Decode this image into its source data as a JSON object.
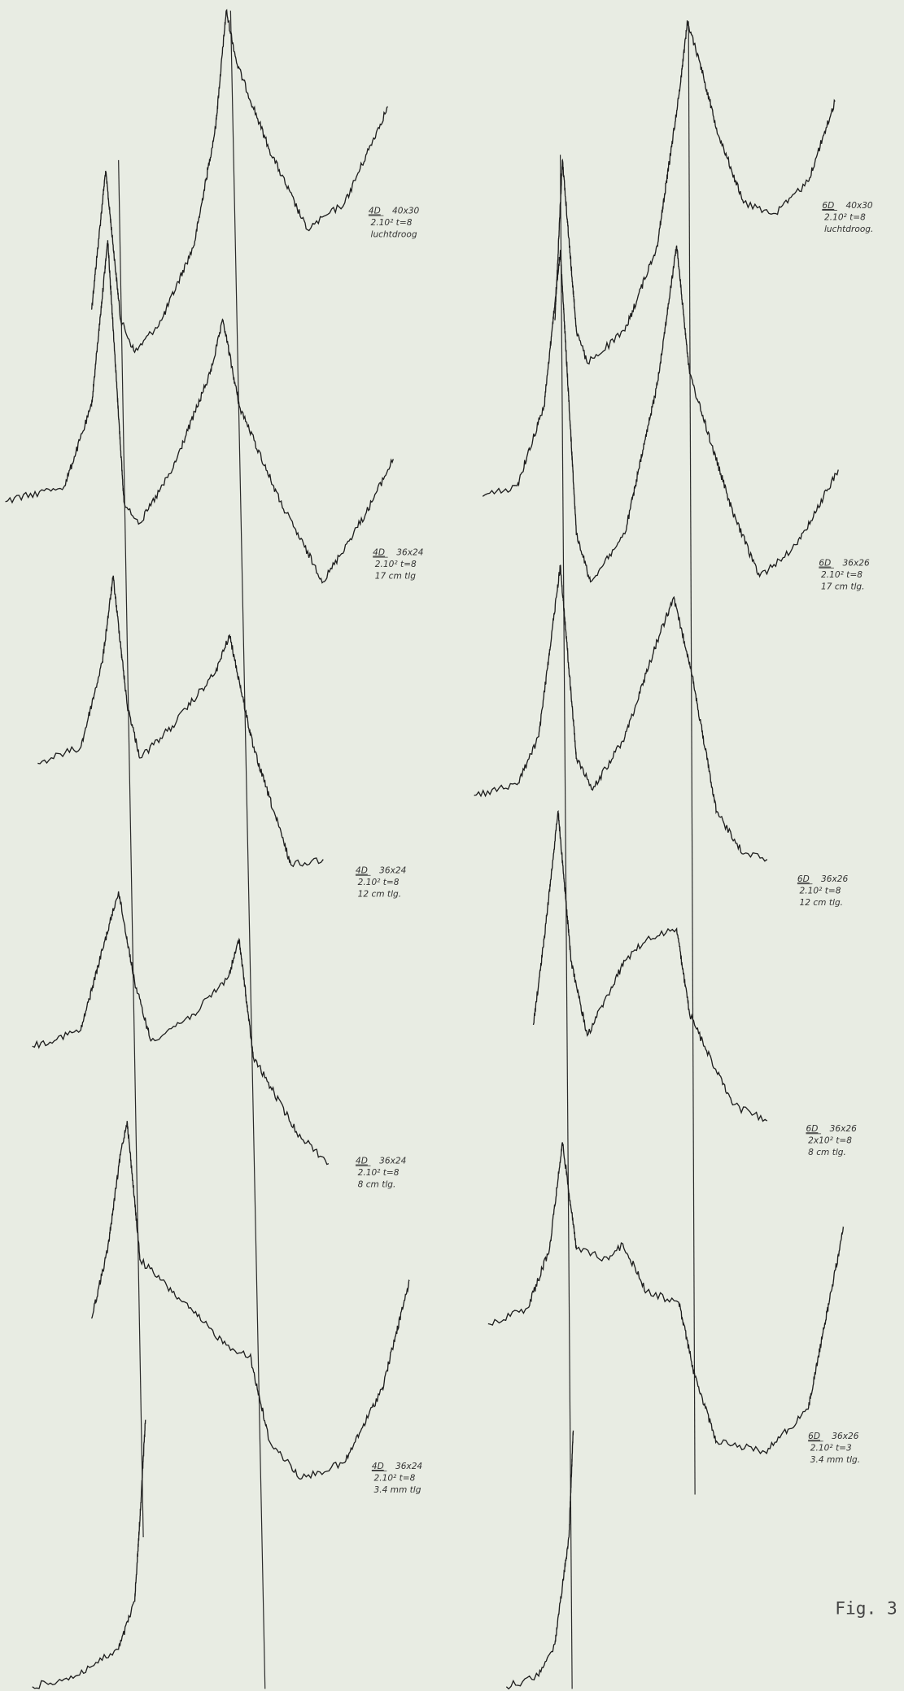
{
  "traces_left": [
    {
      "sample": "4D",
      "dims": "40x30",
      "exposure": "2.10² t=8",
      "condition": "luchtdroog"
    },
    {
      "sample": "4D",
      "dims": "36x24",
      "exposure": "2.10² t=8",
      "condition": "17 cm tlg"
    },
    {
      "sample": "4D",
      "dims": "36x24",
      "exposure": "2.10² t=8",
      "condition": "12 cm tlg."
    },
    {
      "sample": "4D",
      "dims": "36x24",
      "exposure": "2.10² t=8",
      "condition": "8 cm tlg."
    },
    {
      "sample": "4D",
      "dims": "36x24",
      "exposure": "2.10² t=8",
      "condition": "3.4 mm tlg"
    }
  ],
  "traces_right": [
    {
      "sample": "6D",
      "dims": "40x30",
      "exposure": "2.10² t=8",
      "condition": "luchtdroog."
    },
    {
      "sample": "6D",
      "dims": "36x26",
      "exposure": "2.10² t=8",
      "condition": "17 cm tlg."
    },
    {
      "sample": "6D",
      "dims": "36x26",
      "exposure": "2.10² t=8",
      "condition": "12 cm tlg."
    },
    {
      "sample": "6D",
      "dims": "36x26",
      "exposure": "2x10² t=8",
      "condition": "8 cm tlg."
    },
    {
      "sample": "6D",
      "dims": "36x26",
      "exposure": "2.10² t=3",
      "condition": "3.4 mm tlg."
    }
  ],
  "figure_label": "Fig. 3"
}
